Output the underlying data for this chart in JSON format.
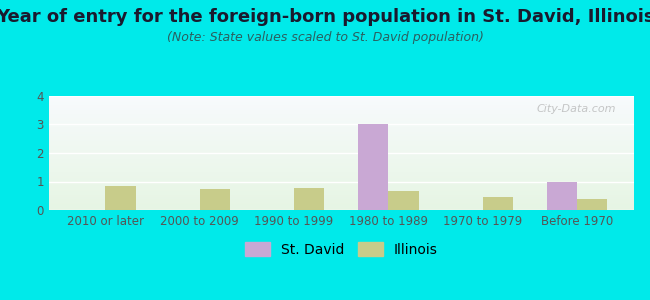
{
  "title": "Year of entry for the foreign-born population in St. David, Illinois",
  "subtitle": "(Note: State values scaled to St. David population)",
  "categories": [
    "2010 or later",
    "2000 to 2009",
    "1990 to 1999",
    "1980 to 1989",
    "1970 to 1979",
    "Before 1970"
  ],
  "st_david": [
    0,
    0,
    0,
    3,
    0,
    1
  ],
  "illinois": [
    0.85,
    0.72,
    0.77,
    0.68,
    0.47,
    0.4
  ],
  "st_david_color": "#c9a8d4",
  "illinois_color": "#c8cc8a",
  "background_color": "#00eaea",
  "ylim": [
    0,
    4
  ],
  "yticks": [
    0,
    1,
    2,
    3,
    4
  ],
  "bar_width": 0.32,
  "title_fontsize": 13,
  "subtitle_fontsize": 9,
  "tick_fontsize": 8.5,
  "legend_fontsize": 10,
  "title_color": "#1a1a2e",
  "subtitle_color": "#2a6060",
  "tick_color": "#555555"
}
